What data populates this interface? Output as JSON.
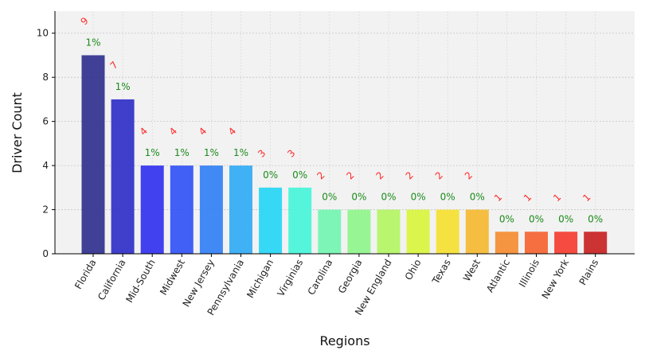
{
  "chart_data": {
    "type": "bar",
    "title": "",
    "xlabel": "Regions",
    "ylabel": "Driver Count",
    "ylim": [
      0,
      11
    ],
    "yticks": [
      0,
      2,
      4,
      6,
      8,
      10
    ],
    "grid": true,
    "categories": [
      "Florida",
      "California",
      "Mid-South",
      "Midwest",
      "New Jersey",
      "Pennsylvania",
      "Michigan",
      "Virginias",
      "Carolina",
      "Georgia",
      "New England",
      "Ohio",
      "Texas",
      "West",
      "Atlantic",
      "Illinois",
      "New York",
      "Plains"
    ],
    "values": [
      9,
      7,
      4,
      4,
      4,
      4,
      3,
      3,
      2,
      2,
      2,
      2,
      2,
      2,
      1,
      1,
      1,
      1
    ],
    "value_labels": [
      "9",
      "7",
      "4",
      "4",
      "4",
      "4",
      "3",
      "3",
      "2",
      "2",
      "2",
      "2",
      "2",
      "2",
      "1",
      "1",
      "1",
      "1"
    ],
    "percent_labels": [
      "1%",
      "1%",
      "1%",
      "1%",
      "1%",
      "1%",
      "0%",
      "0%",
      "0%",
      "0%",
      "0%",
      "0%",
      "0%",
      "0%",
      "0%",
      "0%",
      "0%",
      "0%"
    ],
    "colors": [
      "#2c2c8c",
      "#2b2bc8",
      "#2d2df0",
      "#2d50f5",
      "#2d7df5",
      "#2daaf5",
      "#22d5f5",
      "#44f5d8",
      "#70f5b0",
      "#8ef58a",
      "#b2f560",
      "#d8f53a",
      "#f5e02d",
      "#f5b82d",
      "#f58a2d",
      "#f5602d",
      "#f5382d",
      "#c81e1e"
    ]
  }
}
